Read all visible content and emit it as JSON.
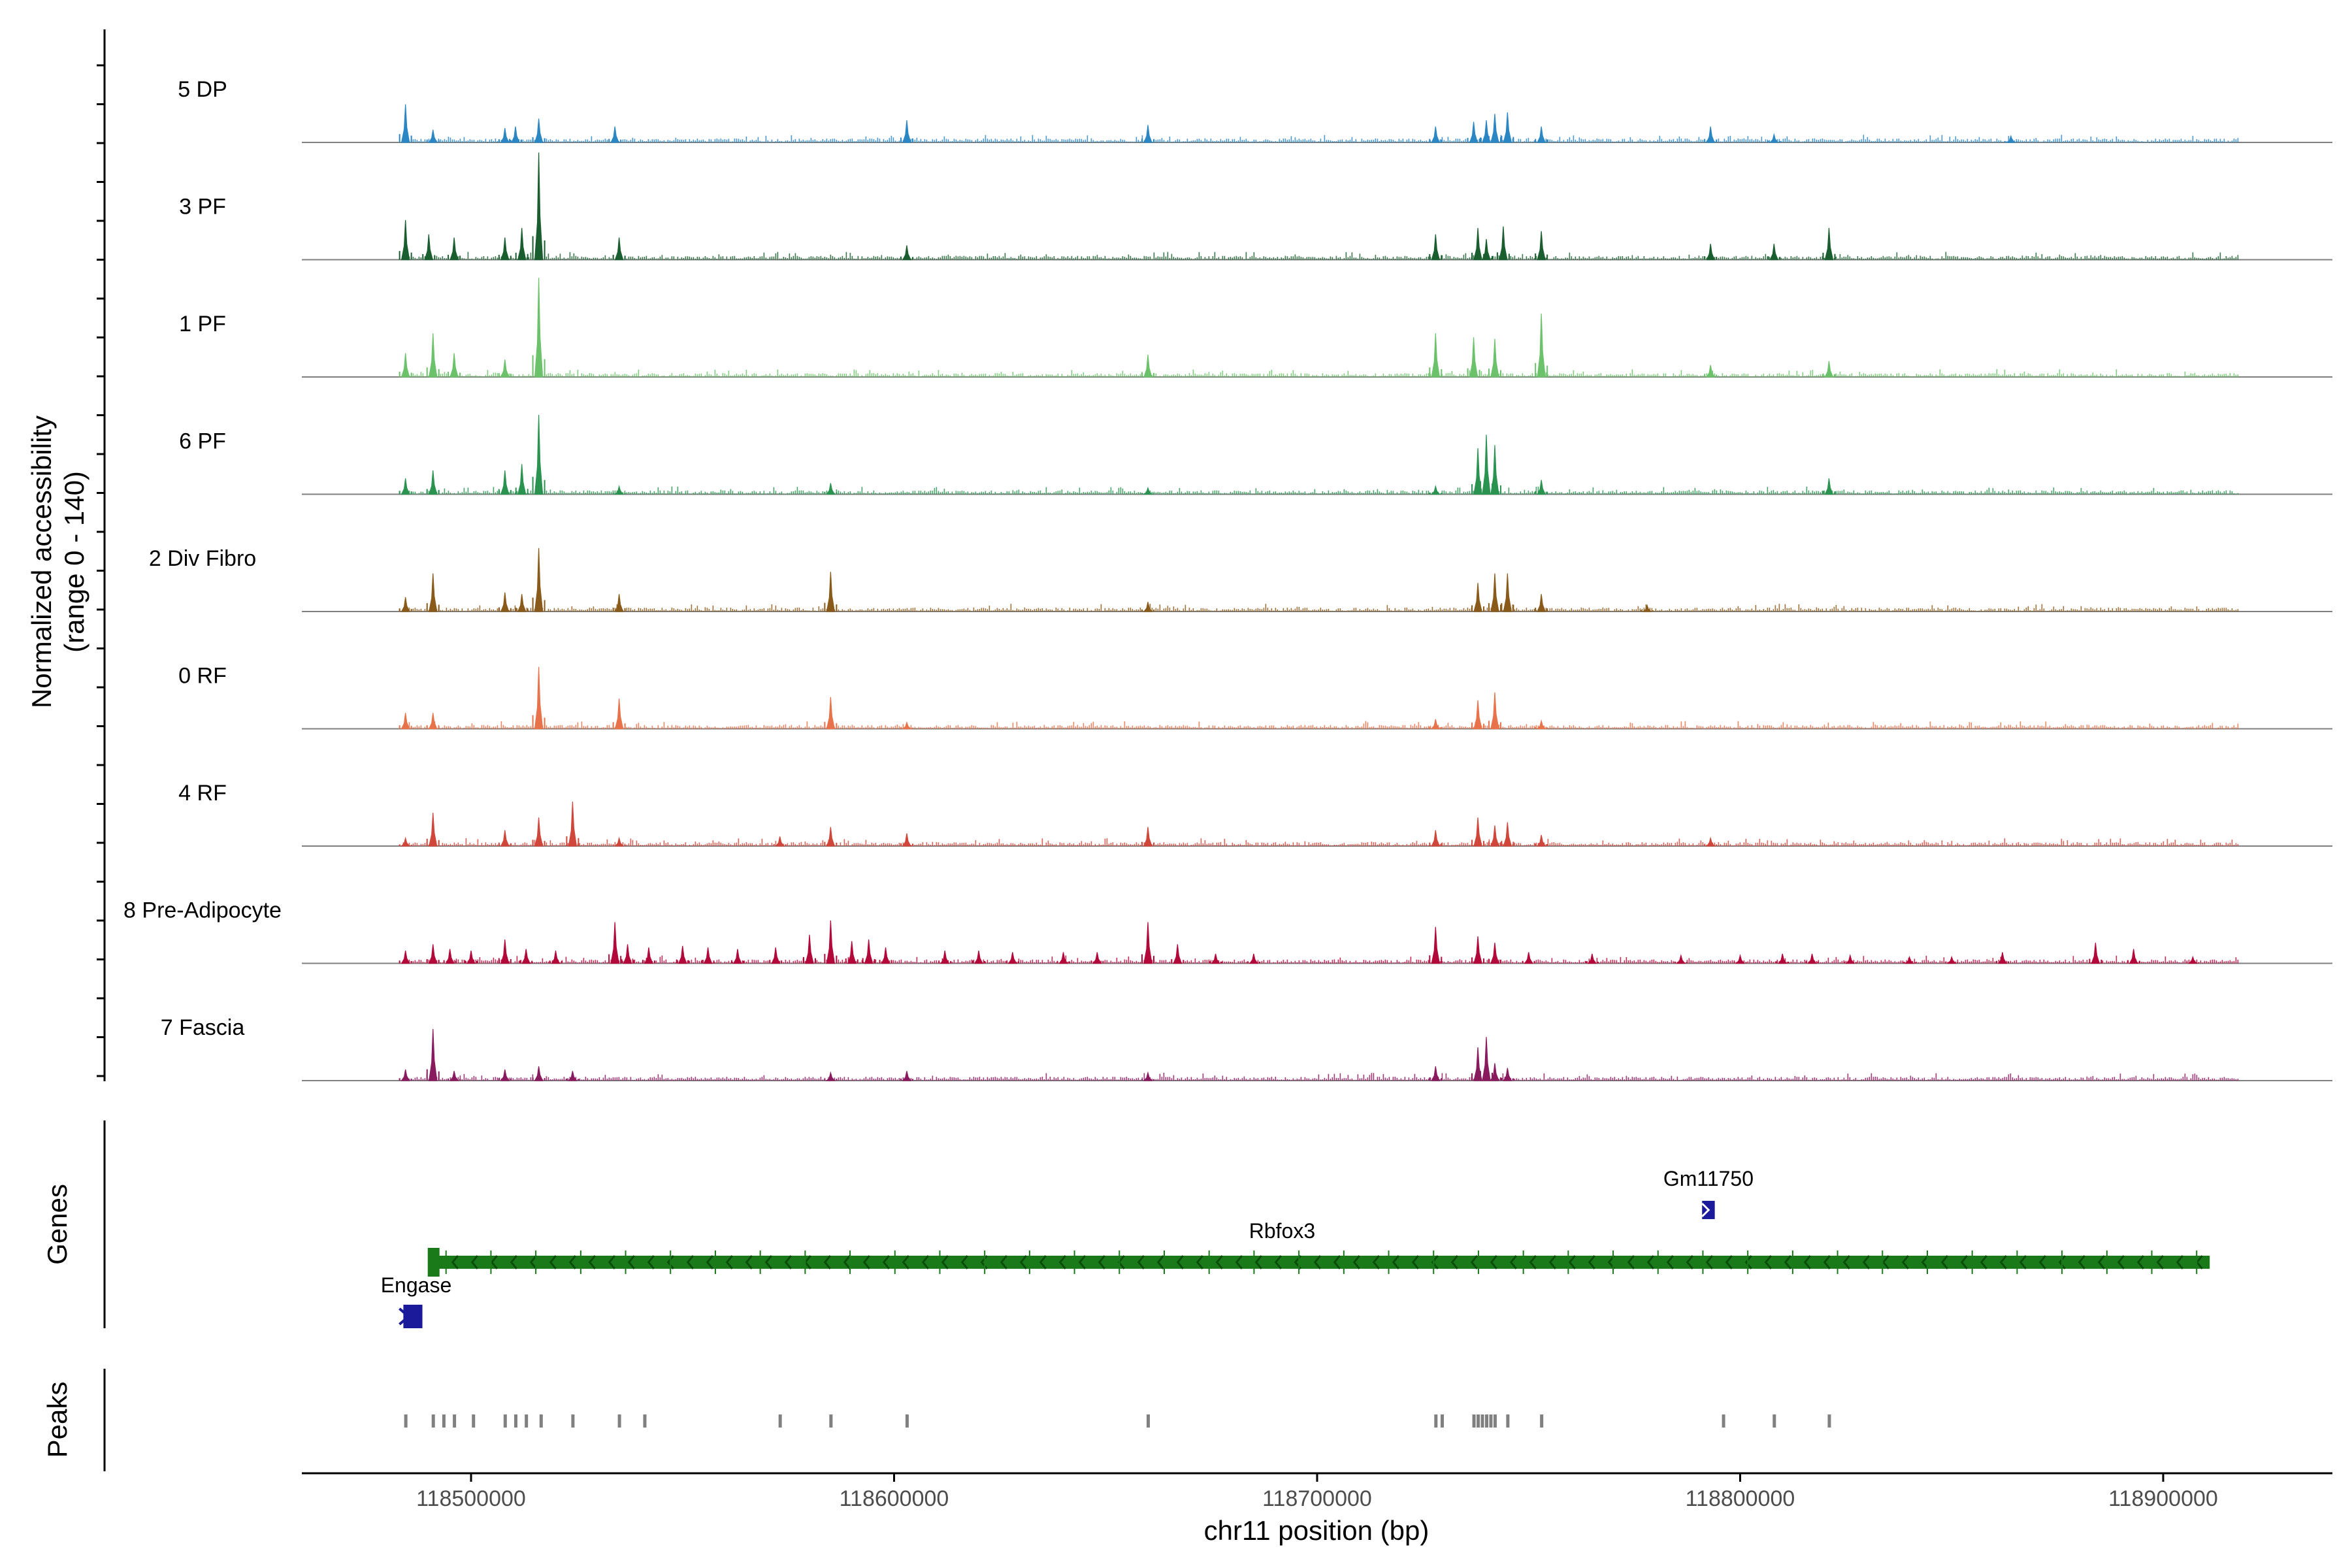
{
  "chart_data": {
    "type": "genome-coverage-track",
    "region": {
      "chromosome": "chr11",
      "start": 118460000,
      "end": 118940000
    },
    "ylabel": "Normalized accessibility",
    "ylabel_range": "(range 0 - 140)",
    "xlabel": "chr11 position (bp)",
    "y_range": [
      0,
      140
    ],
    "x_ticks": [
      {
        "value": 118500000,
        "label": "118500000"
      },
      {
        "value": 118600000,
        "label": "118600000"
      },
      {
        "value": 118700000,
        "label": "118700000"
      },
      {
        "value": 118800000,
        "label": "118800000"
      },
      {
        "value": 118900000,
        "label": "118900000"
      }
    ],
    "track_extent": [
      118484000,
      118918000
    ],
    "tracks": [
      {
        "name": "5 DP",
        "color": "#2b86c4",
        "peaks": [
          [
            118484500,
            48
          ],
          [
            118491000,
            16
          ],
          [
            118508000,
            18
          ],
          [
            118510500,
            20
          ],
          [
            118516000,
            30
          ],
          [
            118534000,
            20
          ],
          [
            118603000,
            28
          ],
          [
            118660000,
            22
          ],
          [
            118728000,
            20
          ],
          [
            118737000,
            26
          ],
          [
            118740000,
            28
          ],
          [
            118742000,
            36
          ],
          [
            118745000,
            38
          ],
          [
            118753000,
            20
          ],
          [
            118793000,
            20
          ],
          [
            118808000,
            10
          ],
          [
            118864000,
            8
          ]
        ]
      },
      {
        "name": "3 PF",
        "color": "#1a5e30",
        "peaks": [
          [
            118484500,
            50
          ],
          [
            118490000,
            32
          ],
          [
            118496000,
            28
          ],
          [
            118508000,
            28
          ],
          [
            118512000,
            40
          ],
          [
            118516000,
            135
          ],
          [
            118535000,
            28
          ],
          [
            118603000,
            18
          ],
          [
            118728000,
            32
          ],
          [
            118738000,
            40
          ],
          [
            118740000,
            26
          ],
          [
            118744000,
            42
          ],
          [
            118753000,
            36
          ],
          [
            118793000,
            20
          ],
          [
            118808000,
            20
          ],
          [
            118821000,
            40
          ]
        ]
      },
      {
        "name": "1 PF",
        "color": "#6cc26a",
        "peaks": [
          [
            118484500,
            30
          ],
          [
            118491000,
            55
          ],
          [
            118496000,
            30
          ],
          [
            118508000,
            22
          ],
          [
            118516000,
            125
          ],
          [
            118660000,
            28
          ],
          [
            118728000,
            55
          ],
          [
            118737000,
            50
          ],
          [
            118742000,
            48
          ],
          [
            118753000,
            80
          ],
          [
            118793000,
            15
          ],
          [
            118821000,
            20
          ]
        ]
      },
      {
        "name": "6 PF",
        "color": "#2a9350",
        "peaks": [
          [
            118484500,
            20
          ],
          [
            118491000,
            30
          ],
          [
            118508000,
            30
          ],
          [
            118512000,
            38
          ],
          [
            118516000,
            100
          ],
          [
            118535000,
            10
          ],
          [
            118585000,
            14
          ],
          [
            118660000,
            8
          ],
          [
            118728000,
            10
          ],
          [
            118738000,
            58
          ],
          [
            118740000,
            75
          ],
          [
            118742000,
            62
          ],
          [
            118753000,
            18
          ],
          [
            118821000,
            20
          ]
        ]
      },
      {
        "name": "2 Div Fibro",
        "color": "#8a5a1a",
        "peaks": [
          [
            118484500,
            18
          ],
          [
            118491000,
            48
          ],
          [
            118508000,
            24
          ],
          [
            118512000,
            22
          ],
          [
            118516000,
            80
          ],
          [
            118535000,
            22
          ],
          [
            118585000,
            50
          ],
          [
            118660000,
            12
          ],
          [
            118738000,
            36
          ],
          [
            118742000,
            48
          ],
          [
            118745000,
            48
          ],
          [
            118753000,
            22
          ],
          [
            118778000,
            8
          ]
        ]
      },
      {
        "name": "0 RF",
        "color": "#e8724a",
        "peaks": [
          [
            118484500,
            20
          ],
          [
            118491000,
            20
          ],
          [
            118516000,
            78
          ],
          [
            118535000,
            38
          ],
          [
            118585000,
            40
          ],
          [
            118603000,
            8
          ],
          [
            118728000,
            12
          ],
          [
            118738000,
            36
          ],
          [
            118742000,
            46
          ],
          [
            118753000,
            10
          ]
        ]
      },
      {
        "name": "4 RF",
        "color": "#d0463a",
        "peaks": [
          [
            118484500,
            10
          ],
          [
            118491000,
            42
          ],
          [
            118508000,
            20
          ],
          [
            118516000,
            36
          ],
          [
            118524000,
            56
          ],
          [
            118535000,
            10
          ],
          [
            118573000,
            12
          ],
          [
            118585000,
            24
          ],
          [
            118603000,
            16
          ],
          [
            118660000,
            24
          ],
          [
            118728000,
            20
          ],
          [
            118738000,
            36
          ],
          [
            118742000,
            26
          ],
          [
            118745000,
            30
          ],
          [
            118753000,
            14
          ],
          [
            118793000,
            10
          ]
        ]
      },
      {
        "name": "8 Pre-Adipocyte",
        "color": "#b3083a",
        "peaks": [
          [
            118484500,
            16
          ],
          [
            118491000,
            24
          ],
          [
            118495000,
            18
          ],
          [
            118500000,
            16
          ],
          [
            118508000,
            30
          ],
          [
            118513000,
            18
          ],
          [
            118520000,
            16
          ],
          [
            118534000,
            52
          ],
          [
            118537000,
            24
          ],
          [
            118542000,
            20
          ],
          [
            118550000,
            22
          ],
          [
            118556000,
            20
          ],
          [
            118563000,
            18
          ],
          [
            118572000,
            20
          ],
          [
            118580000,
            36
          ],
          [
            118585000,
            54
          ],
          [
            118590000,
            28
          ],
          [
            118594000,
            30
          ],
          [
            118598000,
            20
          ],
          [
            118612000,
            16
          ],
          [
            118620000,
            16
          ],
          [
            118628000,
            14
          ],
          [
            118640000,
            14
          ],
          [
            118648000,
            14
          ],
          [
            118660000,
            52
          ],
          [
            118667000,
            24
          ],
          [
            118676000,
            12
          ],
          [
            118685000,
            12
          ],
          [
            118728000,
            46
          ],
          [
            118738000,
            34
          ],
          [
            118742000,
            26
          ],
          [
            118750000,
            14
          ],
          [
            118765000,
            12
          ],
          [
            118786000,
            10
          ],
          [
            118800000,
            10
          ],
          [
            118810000,
            12
          ],
          [
            118817000,
            12
          ],
          [
            118826000,
            10
          ],
          [
            118840000,
            8
          ],
          [
            118850000,
            8
          ],
          [
            118862000,
            14
          ],
          [
            118884000,
            26
          ],
          [
            118893000,
            18
          ],
          [
            118907000,
            8
          ]
        ]
      },
      {
        "name": "7 Fascia",
        "color": "#8a1a5e",
        "peaks": [
          [
            118484500,
            14
          ],
          [
            118491000,
            65
          ],
          [
            118496000,
            12
          ],
          [
            118508000,
            14
          ],
          [
            118516000,
            18
          ],
          [
            118524000,
            12
          ],
          [
            118585000,
            10
          ],
          [
            118603000,
            12
          ],
          [
            118660000,
            10
          ],
          [
            118728000,
            18
          ],
          [
            118738000,
            42
          ],
          [
            118740000,
            55
          ],
          [
            118742000,
            22
          ],
          [
            118745000,
            16
          ]
        ]
      }
    ],
    "genes_label": "Genes",
    "genes": [
      {
        "name": "Rbfox3",
        "start": 118491000,
        "end": 118911000,
        "strand": "-",
        "color": "#1a7a1a"
      },
      {
        "name": "Engase",
        "start": 118484000,
        "end": 118488500,
        "strand": "+",
        "color": "#1a1a9a"
      },
      {
        "name": "Gm11750",
        "start": 118791000,
        "end": 118794000,
        "strand": "+",
        "color": "#1a1a9a"
      }
    ],
    "peaks_label": "Peaks",
    "peak_regions": [
      118484500,
      118491000,
      118493500,
      118496000,
      118500500,
      118508000,
      118510500,
      118513000,
      118516500,
      118524000,
      118535000,
      118541000,
      118573000,
      118585000,
      118603000,
      118660000,
      118728000,
      118729500,
      118737000,
      118738000,
      118739000,
      118740000,
      118741000,
      118742000,
      118745000,
      118753000,
      118796000,
      118808000,
      118821000
    ]
  }
}
